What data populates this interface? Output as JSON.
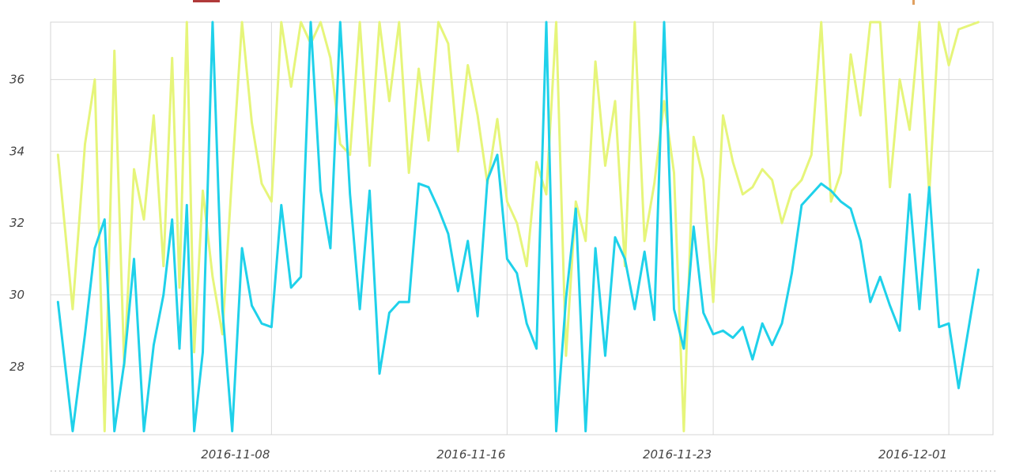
{
  "colors": {
    "series_yellow": "#e6f57a",
    "series_cyan": "#1fd1ea",
    "grid": "#d9d9d9",
    "text": "#444444",
    "legend_accent": "#b03a3a",
    "legend_accent2": "#e0a060"
  },
  "chart_data": {
    "type": "line",
    "title": "",
    "xlabel": "",
    "ylabel": "",
    "x_range": [
      "2016-11-01",
      "2016-12-02"
    ],
    "ylim": [
      26.1,
      37.6
    ],
    "grid": true,
    "yticks": [
      28,
      30,
      32,
      34,
      36
    ],
    "ytick_labels": [
      "28",
      "30",
      "32",
      "34",
      "36"
    ],
    "xticks": [
      "2016-11-08",
      "2016-11-16",
      "2016-11-23",
      "2016-12-01"
    ],
    "xtick_labels": [
      "2016-11-08",
      "2016-11-16",
      "2016-11-23",
      "2016-12-01"
    ],
    "series": [
      {
        "color": "#e6f57a",
        "x": [
          "2016-11-01",
          "2016-11-01",
          "2016-11-02",
          "2016-11-02",
          "2016-11-02",
          "2016-11-03",
          "2016-11-03",
          "2016-11-03",
          "2016-11-04",
          "2016-11-04",
          "2016-11-04",
          "2016-11-05",
          "2016-11-05",
          "2016-11-05",
          "2016-11-05",
          "2016-11-06",
          "2016-11-06",
          "2016-11-06",
          "2016-11-07",
          "2016-11-07",
          "2016-11-07",
          "2016-11-08",
          "2016-11-08",
          "2016-11-08",
          "2016-11-09",
          "2016-11-09",
          "2016-11-09",
          "2016-11-10",
          "2016-11-10",
          "2016-11-10",
          "2016-11-11",
          "2016-11-11",
          "2016-11-11",
          "2016-11-12",
          "2016-11-12",
          "2016-11-12",
          "2016-11-13",
          "2016-11-13",
          "2016-11-13",
          "2016-11-14",
          "2016-11-14",
          "2016-11-14",
          "2016-11-15",
          "2016-11-15",
          "2016-11-15",
          "2016-11-16",
          "2016-11-16",
          "2016-11-16",
          "2016-11-17",
          "2016-11-17",
          "2016-11-17",
          "2016-11-18",
          "2016-11-18",
          "2016-11-18",
          "2016-11-19",
          "2016-11-19",
          "2016-11-19",
          "2016-11-20",
          "2016-11-20",
          "2016-11-20",
          "2016-11-21",
          "2016-11-21",
          "2016-11-21",
          "2016-11-22",
          "2016-11-22",
          "2016-11-22",
          "2016-11-23",
          "2016-11-23",
          "2016-11-23",
          "2016-11-24",
          "2016-11-24",
          "2016-11-24",
          "2016-11-25",
          "2016-11-25",
          "2016-11-25",
          "2016-11-26",
          "2016-11-26",
          "2016-11-26",
          "2016-11-27",
          "2016-11-27",
          "2016-11-27",
          "2016-11-28",
          "2016-11-28",
          "2016-11-28",
          "2016-11-29",
          "2016-11-29",
          "2016-11-29",
          "2016-11-30",
          "2016-11-30",
          "2016-11-30",
          "2016-12-01",
          "2016-12-01",
          "2016-12-01",
          "2016-12-02"
        ],
        "values": [
          33.9,
          29.6,
          34.2,
          36.0,
          26.2,
          36.8,
          28.0,
          33.5,
          32.1,
          35.0,
          30.8,
          36.6,
          30.2,
          37.6,
          28.4,
          32.9,
          30.5,
          28.9,
          33.4,
          37.6,
          34.8,
          33.1,
          32.6,
          37.6,
          35.8,
          37.6,
          37.0,
          37.6,
          36.6,
          34.2,
          33.9,
          37.6,
          33.6,
          37.6,
          35.4,
          37.6,
          33.4,
          36.3,
          34.3,
          37.6,
          37.0,
          34.0,
          36.4,
          35.0,
          33.1,
          34.9,
          32.6,
          32.0,
          30.8,
          33.7,
          32.8,
          37.6,
          28.3,
          32.6,
          31.5,
          36.5,
          33.6,
          35.4,
          30.8,
          37.6,
          31.5,
          33.1,
          35.4,
          33.4,
          26.2,
          34.4,
          33.2,
          29.8,
          35.0,
          33.7,
          32.8,
          33.0,
          33.5,
          33.2,
          32.0,
          32.9,
          33.2,
          33.9,
          37.6,
          32.6,
          33.4,
          36.7,
          35.0,
          37.6,
          37.6,
          33.0,
          36.0,
          34.6,
          37.6,
          32.8,
          37.6,
          36.4,
          37.4,
          37.6
        ]
      },
      {
        "color": "#1fd1ea",
        "x": [
          "2016-11-01",
          "2016-11-01",
          "2016-11-02",
          "2016-11-02",
          "2016-11-02",
          "2016-11-03",
          "2016-11-03",
          "2016-11-03",
          "2016-11-04",
          "2016-11-04",
          "2016-11-04",
          "2016-11-05",
          "2016-11-05",
          "2016-11-05",
          "2016-11-05",
          "2016-11-06",
          "2016-11-06",
          "2016-11-06",
          "2016-11-07",
          "2016-11-07",
          "2016-11-07",
          "2016-11-08",
          "2016-11-08",
          "2016-11-08",
          "2016-11-09",
          "2016-11-09",
          "2016-11-09",
          "2016-11-10",
          "2016-11-10",
          "2016-11-10",
          "2016-11-11",
          "2016-11-11",
          "2016-11-11",
          "2016-11-12",
          "2016-11-12",
          "2016-11-12",
          "2016-11-13",
          "2016-11-13",
          "2016-11-13",
          "2016-11-14",
          "2016-11-14",
          "2016-11-14",
          "2016-11-15",
          "2016-11-15",
          "2016-11-15",
          "2016-11-16",
          "2016-11-16",
          "2016-11-16",
          "2016-11-17",
          "2016-11-17",
          "2016-11-17",
          "2016-11-18",
          "2016-11-18",
          "2016-11-18",
          "2016-11-19",
          "2016-11-19",
          "2016-11-19",
          "2016-11-20",
          "2016-11-20",
          "2016-11-20",
          "2016-11-21",
          "2016-11-21",
          "2016-11-21",
          "2016-11-22",
          "2016-11-22",
          "2016-11-22",
          "2016-11-23",
          "2016-11-23",
          "2016-11-23",
          "2016-11-24",
          "2016-11-24",
          "2016-11-24",
          "2016-11-25",
          "2016-11-25",
          "2016-11-25",
          "2016-11-26",
          "2016-11-26",
          "2016-11-26",
          "2016-11-27",
          "2016-11-27",
          "2016-11-27",
          "2016-11-28",
          "2016-11-28",
          "2016-11-28",
          "2016-11-29",
          "2016-11-29",
          "2016-11-29",
          "2016-11-30",
          "2016-11-30",
          "2016-11-30",
          "2016-12-01",
          "2016-12-01",
          "2016-12-01",
          "2016-12-02"
        ],
        "values": [
          29.8,
          26.2,
          28.9,
          31.3,
          32.1,
          26.2,
          28.1,
          31.0,
          26.2,
          28.6,
          30.0,
          32.1,
          28.5,
          32.5,
          26.2,
          28.4,
          37.6,
          29.6,
          26.2,
          31.3,
          29.7,
          29.2,
          29.1,
          32.5,
          30.2,
          30.5,
          37.6,
          32.9,
          31.3,
          37.6,
          32.8,
          29.6,
          32.9,
          27.8,
          29.5,
          29.8,
          29.8,
          33.1,
          33.0,
          32.4,
          31.7,
          30.1,
          31.5,
          29.4,
          33.2,
          33.9,
          31.0,
          30.6,
          29.2,
          28.5,
          37.6,
          26.2,
          29.9,
          32.4,
          26.2,
          31.3,
          28.3,
          31.6,
          31.0,
          29.6,
          31.2,
          29.3,
          37.6,
          29.6,
          28.5,
          31.9,
          29.5,
          28.9,
          29.0,
          28.8,
          29.1,
          28.2,
          29.2,
          28.6,
          29.2,
          30.6,
          32.5,
          32.8,
          33.1,
          32.9,
          32.6,
          32.4,
          31.5,
          29.8,
          30.5,
          29.7,
          29.0,
          32.8,
          29.6,
          33.0,
          29.1,
          29.2,
          27.4,
          30.7
        ]
      }
    ]
  }
}
